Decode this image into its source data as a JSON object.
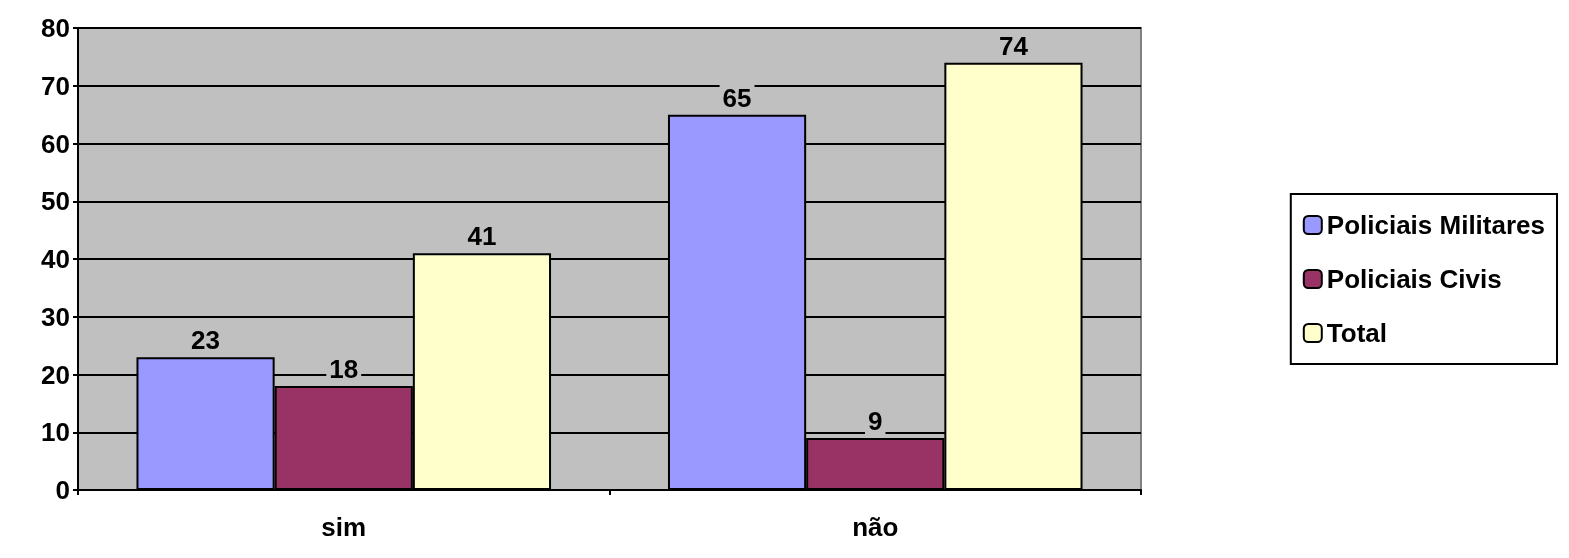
{
  "chart_data": {
    "type": "bar",
    "categories": [
      "sim",
      "não"
    ],
    "series": [
      {
        "name": "Policiais Militares",
        "color": "#9999ff",
        "values": [
          23,
          65
        ]
      },
      {
        "name": "Policiais Civis",
        "color": "#993366",
        "values": [
          18,
          9
        ]
      },
      {
        "name": "Total",
        "color": "#ffffcc",
        "values": [
          41,
          74
        ]
      }
    ],
    "ylim": [
      0,
      80
    ],
    "yticks": [
      0,
      10,
      20,
      30,
      40,
      50,
      60,
      70,
      80
    ],
    "grid": "y",
    "legend": "right",
    "data_labels": true
  }
}
